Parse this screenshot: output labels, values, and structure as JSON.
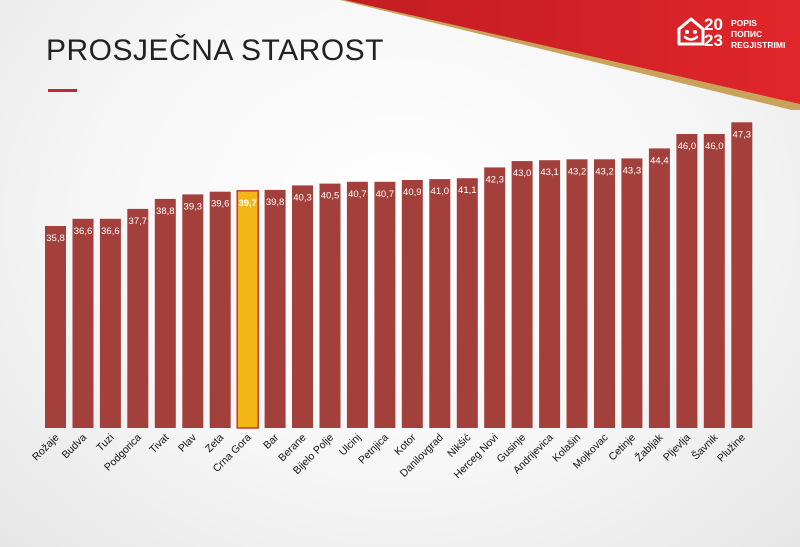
{
  "slide": {
    "title": "PROSJEČNA STAROST"
  },
  "logo": {
    "year_top": "20",
    "year_bottom": "23",
    "words": [
      "POPIS",
      "ПОПИС",
      "REGJISTRIMI"
    ]
  },
  "colors": {
    "bar": "#a3403b",
    "highlight": "#f3b616",
    "highlight_border": "#c23b2f",
    "accent": "#c1272d"
  },
  "chart_data": {
    "type": "bar",
    "title": "PROSJEČNA STAROST",
    "xlabel": "",
    "ylabel": "",
    "highlight_category": "Crna Gora",
    "categories": [
      "Rožaje",
      "Budva",
      "Tuzi",
      "Podgorica",
      "Tivat",
      "Plav",
      "Zeta",
      "Crna Gora",
      "Bar",
      "Berane",
      "Bijelo Polje",
      "Ulcinj",
      "Petnjica",
      "Kotor",
      "Danilovgrad",
      "Nikšić",
      "Herceg Novi",
      "Gusinje",
      "Andrijevica",
      "Kolašin",
      "Mojkovac",
      "Cetinje",
      "Žabljak",
      "Pljevlja",
      "Šavnik",
      "Plužine"
    ],
    "values": [
      35.8,
      36.6,
      36.6,
      37.7,
      38.8,
      39.3,
      39.6,
      39.7,
      39.8,
      40.3,
      40.5,
      40.7,
      40.7,
      40.9,
      41.0,
      41.1,
      42.3,
      43.0,
      43.1,
      43.2,
      43.2,
      43.3,
      44.4,
      46.0,
      46.0,
      47.3
    ],
    "labels": [
      "35,8",
      "36,6",
      "36,6",
      "37,7",
      "38,8",
      "39,3",
      "39,6",
      "39,7",
      "39,8",
      "40,3",
      "40,5",
      "40,7",
      "40,7",
      "40,9",
      "41,0",
      "41,1",
      "42,3",
      "43,0",
      "43,1",
      "43,2",
      "43,2",
      "43,3",
      "44,4",
      "46,0",
      "46,0",
      "47,3"
    ],
    "grid": false,
    "legend": "none"
  }
}
